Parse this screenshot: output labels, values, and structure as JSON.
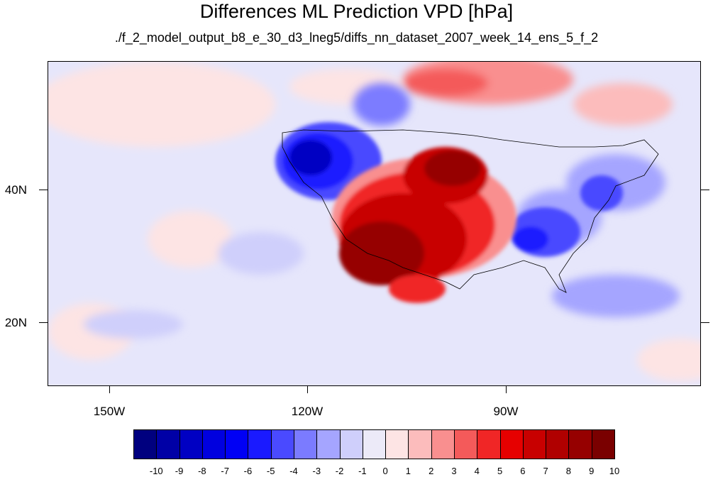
{
  "title": "Differences ML Prediction VPD [hPa]",
  "subtitle": "./f_2_model_output_b8_e_30_d3_lneg5/diffs_nn_dataset_2007_week_14_ens_5_f_2",
  "axes": {
    "lat_labels": [
      "40N",
      "20N"
    ],
    "lon_labels": [
      "150W",
      "120W",
      "90W"
    ]
  },
  "colorbar": {
    "labels": [
      "-10",
      "-9",
      "-8",
      "-7",
      "-6",
      "-5",
      "-4",
      "-3",
      "-2",
      "-1",
      "0",
      "1",
      "2",
      "3",
      "4",
      "5",
      "6",
      "7",
      "8",
      "9",
      "10"
    ],
    "colors": [
      "#00007f",
      "#0000a6",
      "#0000c3",
      "#0000df",
      "#0000f5",
      "#1a1aff",
      "#4a4aff",
      "#7b7bff",
      "#a5a5ff",
      "#cfcffb",
      "#eceaf8",
      "#fde4e4",
      "#fcbcbc",
      "#f98f8f",
      "#f45a5a",
      "#f02626",
      "#e60000",
      "#c80000",
      "#b00000",
      "#960000",
      "#7a0000"
    ]
  },
  "colors": {
    "background_field": "#e6e6fb",
    "land_outline": "#000000"
  }
}
